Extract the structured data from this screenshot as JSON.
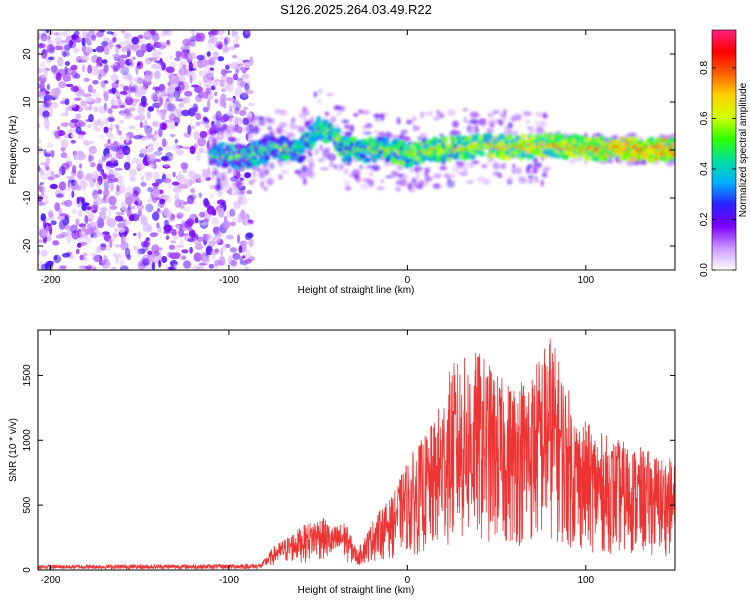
{
  "title": "S126.2025.264.03.49.R22",
  "chart_data": [
    {
      "type": "heatmap",
      "title": "S126.2025.264.03.49.R22",
      "xlabel": "Height of straight line (km)",
      "ylabel": "Frequency (Hz)",
      "xlim": [
        -207,
        150
      ],
      "ylim": [
        -25,
        25
      ],
      "xticks": [
        -200,
        -100,
        0,
        100
      ],
      "yticks": [
        -20,
        -10,
        0,
        10,
        20
      ],
      "noise_region_x": [
        -207,
        -87
      ],
      "signal_region_x": [
        -110,
        150
      ],
      "signal_center_track": [
        {
          "x": -105,
          "y": -1
        },
        {
          "x": -90,
          "y": -1.5
        },
        {
          "x": -75,
          "y": 0.5
        },
        {
          "x": -60,
          "y": 0
        },
        {
          "x": -50,
          "y": 4.5
        },
        {
          "x": -42,
          "y": 3.5
        },
        {
          "x": -35,
          "y": 0
        },
        {
          "x": -25,
          "y": 0
        },
        {
          "x": -10,
          "y": 0
        },
        {
          "x": 0,
          "y": -1
        },
        {
          "x": 15,
          "y": 0
        },
        {
          "x": 30,
          "y": 0.5
        },
        {
          "x": 45,
          "y": 1
        },
        {
          "x": 60,
          "y": 0.5
        },
        {
          "x": 80,
          "y": 1
        },
        {
          "x": 100,
          "y": 0.3
        },
        {
          "x": 150,
          "y": 0
        }
      ],
      "colorbar": {
        "label": "Normalized spectral amplitude",
        "range": [
          0.0,
          0.95
        ],
        "ticks": [
          "0.0",
          "0.2",
          "0.4",
          "0.6",
          "0.8"
        ],
        "tick_values": [
          0.0,
          0.2,
          0.4,
          0.6,
          0.8
        ],
        "colors": [
          "#ffffff",
          "#cc99ff",
          "#7f00ff",
          "#2a20ff",
          "#00b0ff",
          "#00e0a0",
          "#30ff00",
          "#d0ff00",
          "#ffd000",
          "#ff6000",
          "#ff0000",
          "#ff2080"
        ]
      }
    },
    {
      "type": "line",
      "xlabel": "Height of straight line (km)",
      "ylabel": "SNR (10 * v/v)",
      "xlim": [
        -207,
        150
      ],
      "ylim": [
        0,
        1850
      ],
      "xticks": [
        -200,
        -100,
        0,
        100
      ],
      "yticks": [
        0,
        500,
        1000,
        1500
      ],
      "series": [
        {
          "name": "SNR",
          "color": "#ee3333",
          "envelope": [
            {
              "x": -207,
              "y": 40
            },
            {
              "x": -100,
              "y": 45
            },
            {
              "x": -82,
              "y": 50
            },
            {
              "x": -75,
              "y": 180
            },
            {
              "x": -60,
              "y": 330
            },
            {
              "x": -48,
              "y": 420
            },
            {
              "x": -42,
              "y": 330
            },
            {
              "x": -35,
              "y": 380
            },
            {
              "x": -28,
              "y": 150
            },
            {
              "x": -18,
              "y": 420
            },
            {
              "x": -8,
              "y": 580
            },
            {
              "x": 0,
              "y": 850
            },
            {
              "x": 15,
              "y": 1150
            },
            {
              "x": 25,
              "y": 1600
            },
            {
              "x": 40,
              "y": 1700
            },
            {
              "x": 55,
              "y": 1450
            },
            {
              "x": 70,
              "y": 1550
            },
            {
              "x": 80,
              "y": 1850
            },
            {
              "x": 95,
              "y": 1200
            },
            {
              "x": 110,
              "y": 1050
            },
            {
              "x": 130,
              "y": 950
            },
            {
              "x": 150,
              "y": 850
            }
          ]
        }
      ]
    }
  ]
}
